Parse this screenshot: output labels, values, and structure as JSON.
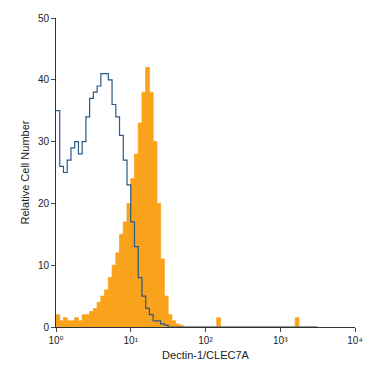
{
  "chart_data": {
    "type": "histogram",
    "x_label": "Dectin-1/CLEC7A",
    "y_label": "Relative Cell Number",
    "log": "x",
    "grid": false,
    "bins": [
      1,
      1.122,
      1.259,
      1.413,
      1.585,
      1.778,
      1.995,
      2.239,
      2.512,
      2.818,
      3.162,
      3.548,
      3.981,
      4.467,
      5.012,
      5.623,
      6.31,
      7.079,
      7.943,
      8.913,
      10,
      11.22,
      12.59,
      14.13,
      15.85,
      17.78,
      19.95,
      22.39,
      25.12,
      28.18,
      31.62,
      35.48,
      39.81,
      44.67,
      50.12,
      56.23,
      63.1,
      70.79,
      79.43,
      89.13,
      100,
      112.2,
      125.9,
      141.3,
      158.5,
      177.8,
      199.5,
      223.9,
      251.2,
      281.8,
      316.2,
      354.8,
      398.1,
      446.7,
      501.2,
      562.3,
      631.0,
      707.9,
      794.3,
      891.3,
      1000,
      1122,
      1259,
      1413,
      1585,
      1778,
      1995,
      2239,
      2512,
      2818,
      3162
    ],
    "series": [
      {
        "type": "area",
        "color": "#f9a21b",
        "values": [
          2,
          1,
          1.5,
          1,
          1,
          1.5,
          1,
          2,
          2,
          2.5,
          3,
          4,
          5,
          6,
          8,
          10,
          12,
          15,
          17,
          20,
          24,
          28,
          33,
          38,
          42,
          38,
          30,
          20,
          11,
          5,
          2,
          1,
          0.5,
          0.3,
          0,
          0,
          0,
          0,
          0,
          0,
          0,
          0,
          0,
          1.5,
          0,
          0,
          0,
          0,
          0,
          0,
          0,
          0,
          0,
          0,
          0,
          0,
          0,
          0,
          0,
          0,
          0,
          0,
          0,
          0,
          1.5,
          0,
          0,
          0,
          0,
          0
        ]
      },
      {
        "type": "line",
        "color": "#2b5a87",
        "values": [
          35,
          26,
          25,
          27,
          29,
          30,
          28,
          30,
          34,
          37,
          38,
          39,
          41,
          41,
          40,
          36,
          34,
          31,
          27,
          23,
          17,
          13,
          8,
          5,
          3,
          2,
          1,
          1,
          0.5,
          0.3,
          0,
          0,
          0,
          0,
          0,
          0,
          0,
          0,
          0,
          0,
          0,
          0,
          0,
          0,
          0,
          0,
          0,
          0,
          0,
          0,
          0,
          0,
          0,
          0,
          0,
          0,
          0,
          0,
          0,
          0,
          0,
          0,
          0,
          0,
          0,
          0,
          0,
          0,
          0,
          0
        ]
      }
    ],
    "xlim": [
      1,
      10000
    ],
    "xticks": [
      {
        "value": 1,
        "label": "10⁰"
      },
      {
        "value": 10,
        "label": "10¹"
      },
      {
        "value": 100,
        "label": "10²"
      },
      {
        "value": 1000,
        "label": "10³"
      },
      {
        "value": 10000,
        "label": "10⁴"
      }
    ],
    "ylim": [
      0,
      50
    ],
    "yticks": [
      0,
      10,
      20,
      30,
      40,
      50
    ]
  }
}
